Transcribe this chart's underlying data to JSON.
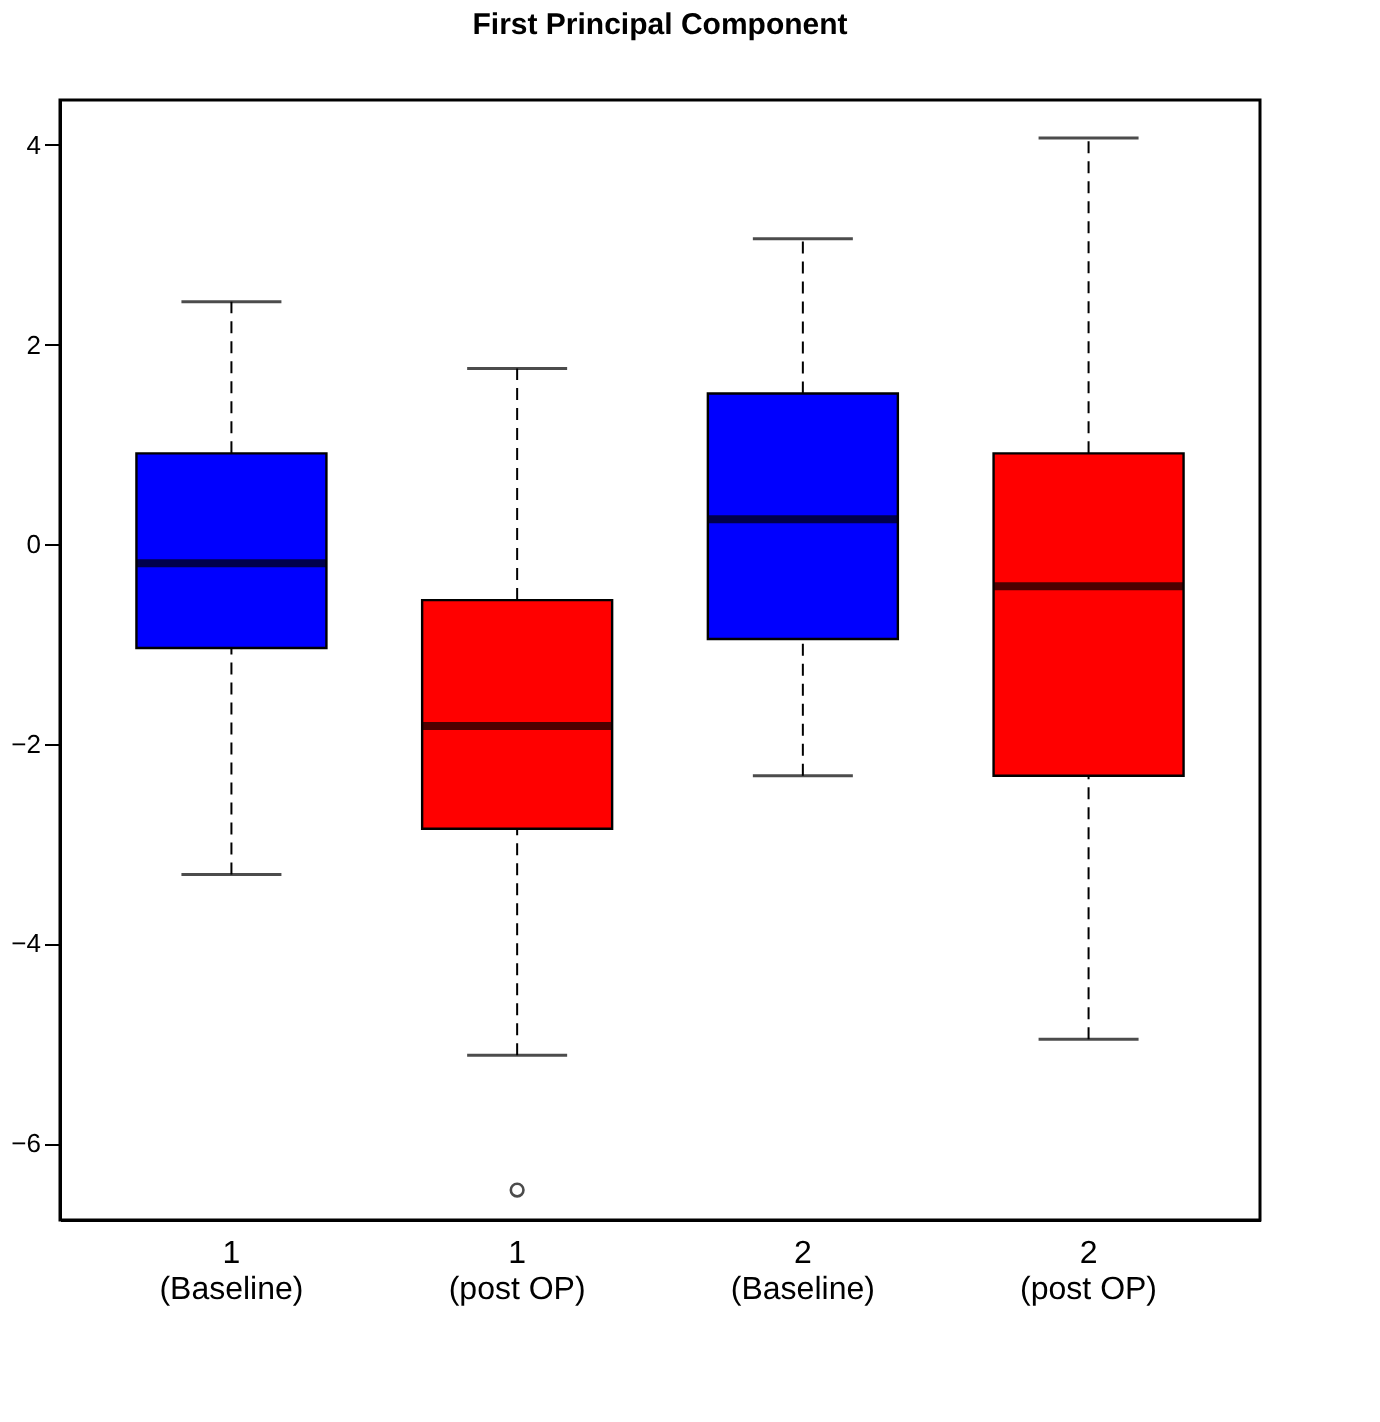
{
  "chart_data": {
    "type": "box",
    "title": "First Principal Component",
    "categories": [
      "1\n(Baseline)",
      "1\n(post OP)",
      "2\n(Baseline)",
      "2\n(post OP)"
    ],
    "colors": [
      "#0000ff",
      "#ff0000",
      "#0000ff",
      "#ff0000"
    ],
    "boxes": [
      {
        "low": -3.31,
        "q1": -1.04,
        "median": -0.19,
        "q3": 0.91,
        "high": 2.43
      },
      {
        "low": -5.12,
        "q1": -2.85,
        "median": -1.82,
        "q3": -0.56,
        "high": 1.76,
        "outliers": [
          -6.47
        ]
      },
      {
        "low": -2.32,
        "q1": -0.95,
        "median": 0.25,
        "q3": 1.51,
        "high": 3.06
      },
      {
        "low": -4.96,
        "q1": -2.32,
        "median": -0.42,
        "q3": 0.91,
        "high": 4.07
      }
    ],
    "ylim": [
      -6.77,
      4.45
    ],
    "yticks": [
      -6,
      -4,
      -2,
      0,
      2,
      4
    ],
    "grid": false
  }
}
